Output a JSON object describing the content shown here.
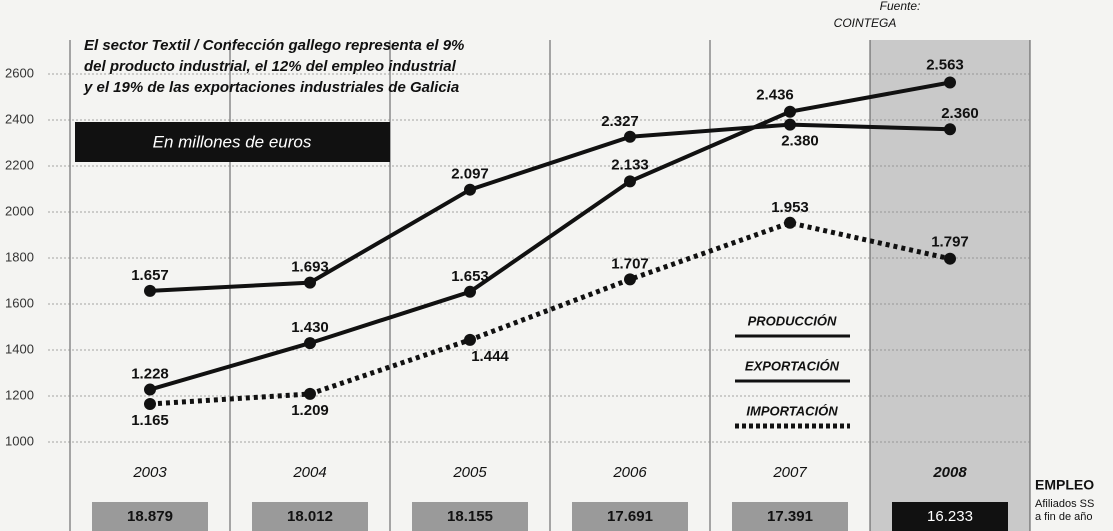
{
  "chart_data": {
    "type": "line",
    "title": [
      "El sector Textil / Confección gallego representa el 9%",
      "del producto industrial, el 12% del empleo industrial",
      "y el 19% de las exportaciones industriales de Galicia"
    ],
    "subtitle": "En millones de euros",
    "source_label": "Fuente:",
    "source": "COINTEGA",
    "categories": [
      "2003",
      "2004",
      "2005",
      "2006",
      "2007",
      "2008"
    ],
    "ylim": [
      1000,
      2800
    ],
    "yticks": [
      1000,
      1200,
      1400,
      1600,
      1800,
      2000,
      2200,
      2400,
      2600
    ],
    "grid": true,
    "series": [
      {
        "name": "PRODUCCIÓN",
        "color": "#111111",
        "style": "solid",
        "values": [
          1657,
          1693,
          2097,
          2327,
          2380,
          2360
        ],
        "value_labels": [
          "1.657",
          "1.693",
          "2.097",
          "2.327",
          "2.380",
          "2.360"
        ]
      },
      {
        "name": "EXPORTACIÓN",
        "color": "#111111",
        "style": "solid",
        "values": [
          1228,
          1430,
          1653,
          2133,
          2436,
          2563
        ],
        "value_labels": [
          "1.228",
          "1.430",
          "1.653",
          "2.133",
          "2.436",
          "2.563"
        ]
      },
      {
        "name": "IMPORTACIÓN",
        "color": "#111111",
        "style": "dotted",
        "values": [
          1165,
          1209,
          1444,
          1707,
          1953,
          1797
        ],
        "value_labels": [
          "1.165",
          "1.209",
          "1.444",
          "1.707",
          "1.953",
          "1.797"
        ]
      }
    ],
    "employment": {
      "title": "EMPLEO",
      "subtitle": [
        "Afiliados SS",
        "a fin de año"
      ],
      "values": [
        18879,
        18012,
        18155,
        17691,
        17391,
        16233
      ],
      "value_labels": [
        "18.879",
        "18.012",
        "18.155",
        "17.691",
        "17.391",
        "16.233"
      ]
    }
  }
}
